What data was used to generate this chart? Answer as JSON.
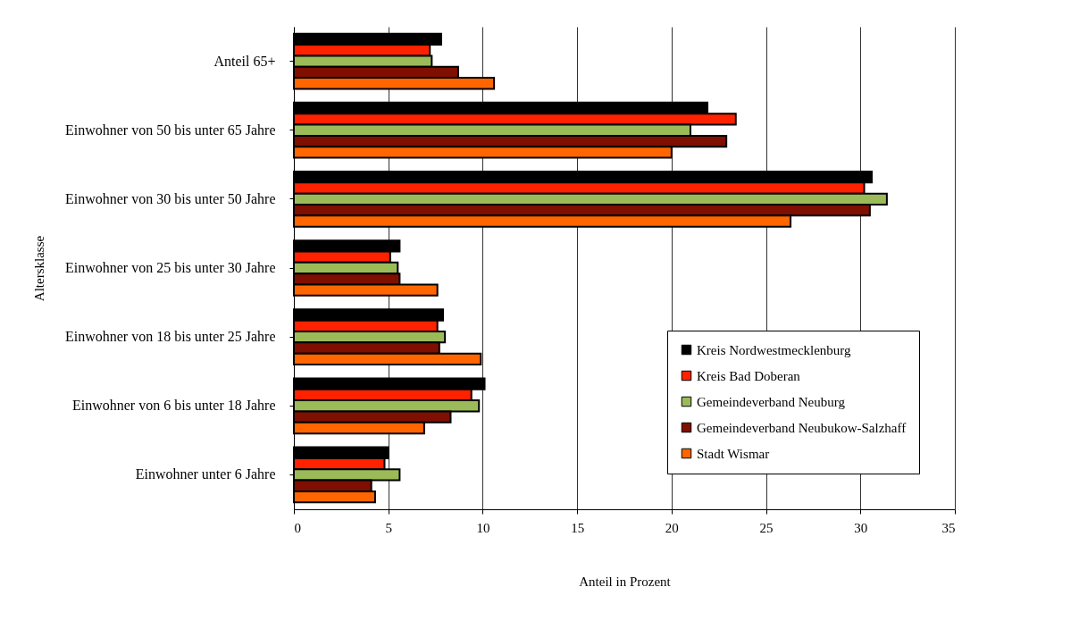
{
  "chart_data": {
    "type": "bar",
    "orientation": "horizontal",
    "xlabel": "Anteil in Prozent",
    "ylabel": "Altersklasse",
    "categories": [
      "Anteil 65+",
      "Einwohner von 50 bis unter 65 Jahre",
      "Einwohner von 30 bis unter 50 Jahre",
      "Einwohner von 25 bis unter 30 Jahre",
      "Einwohner von 18 bis unter 25 Jahre",
      "Einwohner von 6 bis unter 18 Jahre",
      "Einwohner unter 6 Jahre"
    ],
    "series": [
      {
        "name": "Kreis Nordwestmecklenburg",
        "color": "#000000",
        "values": [
          7.8,
          21.9,
          30.6,
          5.6,
          7.9,
          10.1,
          5.0
        ]
      },
      {
        "name": "Kreis Bad Doberan",
        "color": "#ff2200",
        "values": [
          7.2,
          23.4,
          30.2,
          5.1,
          7.6,
          9.4,
          4.8
        ]
      },
      {
        "name": "Gemeindeverband Neuburg",
        "color": "#9bbb59",
        "values": [
          7.3,
          21.0,
          31.4,
          5.5,
          8.0,
          9.8,
          5.6
        ]
      },
      {
        "name": "Gemeindeverband Neubukow-Salzhaff",
        "color": "#7f0f00",
        "values": [
          8.7,
          22.9,
          30.5,
          5.6,
          7.7,
          8.3,
          4.1
        ]
      },
      {
        "name": "Stadt Wismar",
        "color": "#ff6600",
        "values": [
          10.6,
          20.0,
          26.3,
          7.6,
          9.9,
          6.9,
          4.3
        ]
      }
    ],
    "xlim": [
      0,
      35
    ],
    "xticks": [
      0,
      5,
      10,
      15,
      20,
      25,
      30,
      35
    ],
    "grid": "x",
    "legend": "bottom right"
  }
}
